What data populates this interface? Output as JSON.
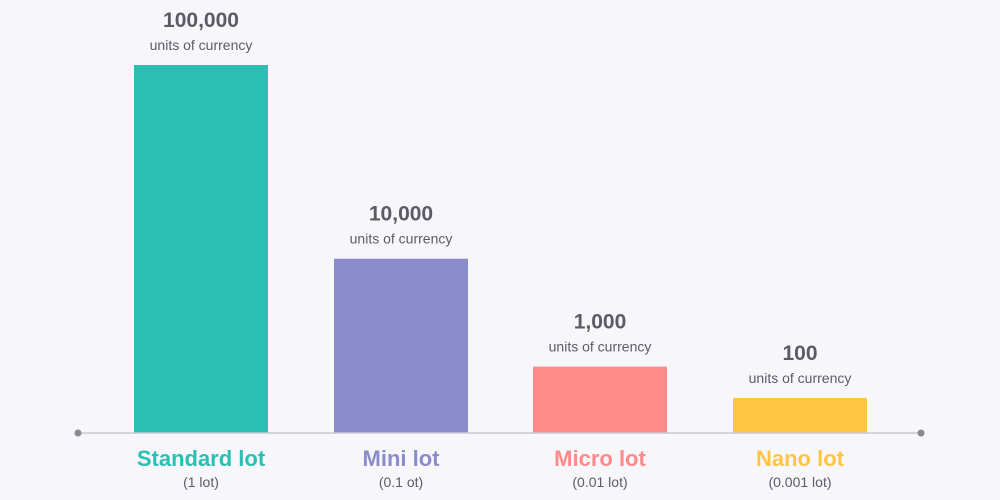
{
  "chart_data": {
    "type": "bar",
    "categories": [
      "Standard lot",
      "Mini lot",
      "Micro lot",
      "Nano lot"
    ],
    "subtitles": [
      "(1 lot)",
      "(0.1 ot)",
      "(0.01 lot)",
      "(0.001 lot)"
    ],
    "values": [
      100000,
      10000,
      1000,
      100
    ],
    "value_labels": [
      "100,000",
      "10,000",
      "1,000",
      "100"
    ],
    "unit_labels": [
      "units of currency",
      "units of currency",
      "units of currency",
      "units of currency"
    ],
    "colors": [
      "#2bbfb3",
      "#8b8ccc",
      "#ff8a8a",
      "#ffc542"
    ],
    "scale": "log",
    "title": "",
    "xlabel": "",
    "ylabel": "",
    "grid": false,
    "legend": "none"
  }
}
